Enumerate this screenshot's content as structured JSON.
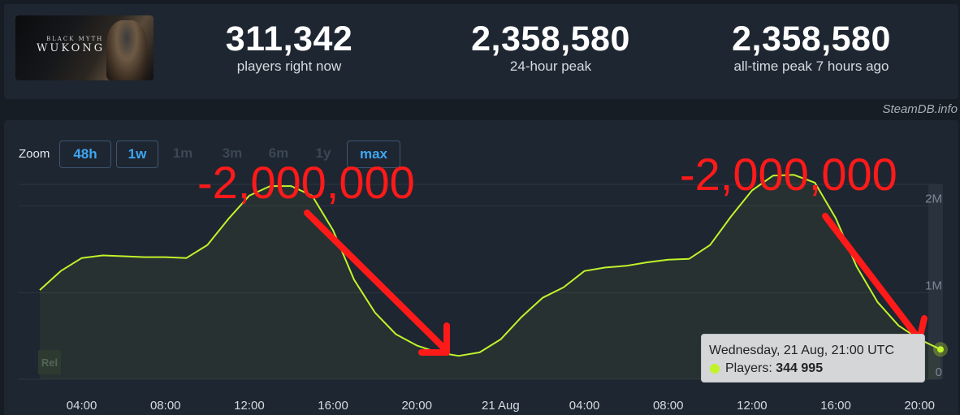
{
  "header": {
    "game_title_small": "BLACK MYTH",
    "game_title_big": "WUKONG",
    "stats": [
      {
        "value": "311,342",
        "label": "players right now"
      },
      {
        "value": "2,358,580",
        "label": "24-hour peak"
      },
      {
        "value": "2,358,580",
        "label": "all-time peak 7 hours ago"
      }
    ],
    "credit": "SteamDB.info"
  },
  "zoom": {
    "label": "Zoom",
    "options": [
      "48h",
      "1w",
      "1m",
      "3m",
      "6m",
      "1y",
      "max"
    ],
    "boxed": [
      "48h",
      "1w",
      "max"
    ]
  },
  "tooltip": {
    "date": "Wednesday, 21 Aug, 21:00 UTC",
    "series_label": "Players:",
    "value": "344 995"
  },
  "annotations": [
    "-2,000,000",
    "-2,000,000"
  ],
  "rel_label": "Rel",
  "colors": {
    "line": "#c1f32b",
    "annotation": "#ff1a1a",
    "accent": "#3ea6f2",
    "panel": "#1e2631",
    "background": "#171d25"
  },
  "chart_data": {
    "type": "area",
    "x_unit": "hours (UTC) from 20 Aug 02:00",
    "x_ticks": [
      {
        "x": 2,
        "label": "04:00"
      },
      {
        "x": 6,
        "label": "08:00"
      },
      {
        "x": 10,
        "label": "12:00"
      },
      {
        "x": 14,
        "label": "16:00"
      },
      {
        "x": 18,
        "label": "20:00"
      },
      {
        "x": 22,
        "label": "21 Aug"
      },
      {
        "x": 26,
        "label": "04:00"
      },
      {
        "x": 30,
        "label": "08:00"
      },
      {
        "x": 34,
        "label": "12:00"
      },
      {
        "x": 38,
        "label": "16:00"
      },
      {
        "x": 42,
        "label": "20:00"
      }
    ],
    "y_ticks": [
      {
        "y": 0,
        "label": "0"
      },
      {
        "y": 1000000,
        "label": "1M"
      },
      {
        "y": 2000000,
        "label": "2M"
      }
    ],
    "ylim": [
      0,
      3000000
    ],
    "xlim": [
      0,
      43
    ],
    "grid": true,
    "series": [
      {
        "x": [
          0,
          1,
          2,
          3,
          4,
          5,
          6,
          7,
          8,
          9,
          10,
          11,
          12,
          13,
          14,
          15,
          16,
          17,
          18,
          19,
          20,
          21,
          22,
          23,
          24,
          25,
          26,
          27,
          28,
          29,
          30,
          31,
          32,
          33,
          34,
          35,
          36,
          37,
          38,
          39,
          40,
          41,
          42,
          43
        ],
        "values": [
          1030000,
          1250000,
          1400000,
          1430000,
          1420000,
          1410000,
          1410000,
          1400000,
          1550000,
          1850000,
          2120000,
          2230000,
          2230000,
          2120000,
          1720000,
          1150000,
          770000,
          520000,
          390000,
          310000,
          270000,
          310000,
          460000,
          720000,
          940000,
          1060000,
          1250000,
          1290000,
          1310000,
          1350000,
          1380000,
          1390000,
          1550000,
          1880000,
          2180000,
          2350000,
          2360000,
          2270000,
          1860000,
          1300000,
          890000,
          620000,
          460000,
          344995
        ]
      }
    ]
  }
}
